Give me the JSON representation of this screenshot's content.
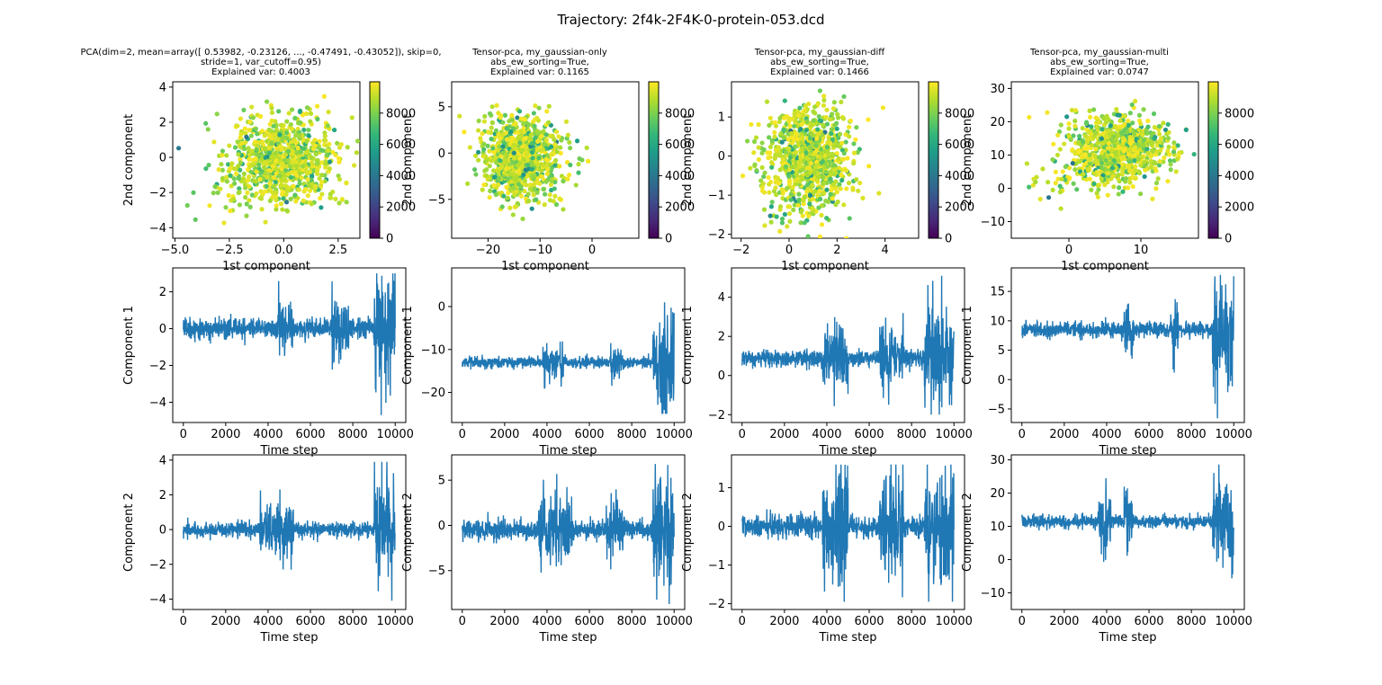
{
  "figure_title": "Trajectory: 2f4k-2F4K-0-protein-053.dcd",
  "colors": {
    "line": "#1f77b4",
    "viridis": [
      "#440154",
      "#482878",
      "#3e4989",
      "#31688e",
      "#26828e",
      "#1f9e89",
      "#35b779",
      "#6ece58",
      "#b5de2b",
      "#fde725"
    ]
  },
  "chart_data": [
    {
      "id": "scatter-1",
      "type": "scatter",
      "title_lines": [
        "PCA(dim=2, mean=array([ 0.53982, -0.23126, ..., -0.47491, -0.43052]), skip=0,",
        "stride=1, var_cutoff=0.95)",
        "Explained var: 0.4003"
      ],
      "xlabel": "1st component",
      "ylabel": "2nd component",
      "xlim": [
        -5.1,
        3.5
      ],
      "ylim": [
        -4.6,
        4.3
      ],
      "xticks": [
        -5.0,
        -2.5,
        0.0,
        2.5
      ],
      "xticklabels": [
        "−5.0",
        "−2.5",
        "0.0",
        "2.5"
      ],
      "yticks": [
        -4,
        -2,
        0,
        2,
        4
      ],
      "yticklabels": [
        "−4",
        "−2",
        "0",
        "2",
        "4"
      ],
      "point_cloud": {
        "center": [
          0.0,
          0.0
        ],
        "spread": [
          1.2,
          1.2
        ],
        "tail_direction": [
          -1.0,
          -0.9
        ]
      },
      "colorbar": {
        "label": "",
        "range": [
          0,
          10000
        ],
        "ticks": [
          0,
          2000,
          4000,
          6000,
          8000
        ],
        "ticklabels": [
          "0",
          "2000",
          "4000",
          "6000",
          "8000"
        ]
      }
    },
    {
      "id": "scatter-2",
      "type": "scatter",
      "title_lines": [
        "Tensor-pca, my_gaussian-only",
        "abs_ew_sorting=True,",
        "Explained var: 0.1165"
      ],
      "xlabel": "1st component",
      "ylabel": "2nd component",
      "xlim": [
        -27,
        9
      ],
      "ylim": [
        -9.2,
        7.7
      ],
      "xticks": [
        -20,
        -10,
        0
      ],
      "xticklabels": [
        "−20",
        "−10",
        "0"
      ],
      "yticks": [
        -5,
        0,
        5
      ],
      "yticklabels": [
        "−5",
        "0",
        "5"
      ],
      "point_cloud": {
        "center": [
          -14.0,
          -0.5
        ],
        "spread": [
          3.5,
          2.2
        ],
        "tail_direction": [
          1.0,
          -0.3
        ]
      },
      "colorbar": {
        "label": "",
        "range": [
          0,
          10000
        ],
        "ticks": [
          0,
          2000,
          4000,
          6000,
          8000
        ],
        "ticklabels": [
          "0",
          "2000",
          "4000",
          "6000",
          "8000"
        ]
      }
    },
    {
      "id": "scatter-3",
      "type": "scatter",
      "title_lines": [
        "Tensor-pca, my_gaussian-diff",
        "abs_ew_sorting=True,",
        "Explained var: 0.1466"
      ],
      "xlabel": "1st component",
      "ylabel": "2nd component",
      "xlim": [
        -2.4,
        5.4
      ],
      "ylim": [
        -2.1,
        1.9
      ],
      "xticks": [
        -2,
        0,
        2,
        4
      ],
      "xticklabels": [
        "−2",
        "0",
        "2",
        "4"
      ],
      "yticks": [
        -2,
        -1,
        0,
        1
      ],
      "yticklabels": [
        "−2",
        "−1",
        "0",
        "1"
      ],
      "point_cloud": {
        "center": [
          0.8,
          0.0
        ],
        "spread": [
          0.9,
          0.6
        ],
        "tail_direction": [
          -0.2,
          -1.0
        ]
      },
      "colorbar": {
        "label": "",
        "range": [
          0,
          10000
        ],
        "ticks": [
          0,
          2000,
          4000,
          6000,
          8000
        ],
        "ticklabels": [
          "0",
          "2000",
          "4000",
          "6000",
          "8000"
        ]
      }
    },
    {
      "id": "scatter-4",
      "type": "scatter",
      "title_lines": [
        "Tensor-pca, my_gaussian-multi",
        "abs_ew_sorting=True,",
        "Explained var: 0.0747"
      ],
      "xlabel": "1st component",
      "ylabel": "2nd component",
      "xlim": [
        -8,
        18
      ],
      "ylim": [
        -15,
        32
      ],
      "xticks": [
        0,
        10
      ],
      "xticklabels": [
        "0",
        "10"
      ],
      "yticks": [
        -10,
        0,
        10,
        20,
        30
      ],
      "yticklabels": [
        "−10",
        "0",
        "10",
        "20",
        "30"
      ],
      "point_cloud": {
        "center": [
          7.0,
          12.0
        ],
        "spread": [
          3.5,
          5.0
        ],
        "tail_direction": [
          -1.0,
          -1.0
        ]
      },
      "colorbar": {
        "label": "",
        "range": [
          0,
          10000
        ],
        "ticks": [
          0,
          2000,
          4000,
          6000,
          8000
        ],
        "ticklabels": [
          "0",
          "2000",
          "4000",
          "6000",
          "8000"
        ]
      }
    },
    {
      "id": "line-1-1",
      "type": "line",
      "xlabel": "Time step",
      "ylabel": "Component 1",
      "xlim": [
        -500,
        10500
      ],
      "ylim": [
        -5.1,
        3.3
      ],
      "xticks": [
        0,
        2000,
        4000,
        6000,
        8000,
        10000
      ],
      "xticklabels": [
        "0",
        "2000",
        "4000",
        "6000",
        "8000",
        "10000"
      ],
      "yticks": [
        -4,
        -2,
        0,
        2
      ],
      "yticklabels": [
        "−4",
        "−2",
        "0",
        "2"
      ],
      "series": {
        "baseline": 0.0,
        "noise": 0.5,
        "bursts": [
          [
            4500,
            5200,
            1.5
          ],
          [
            7000,
            7800,
            1.5
          ],
          [
            9000,
            10000,
            3.5
          ]
        ],
        "range": [
          -4.7,
          3.0
        ]
      }
    },
    {
      "id": "line-2-1",
      "type": "line",
      "xlabel": "Time step",
      "ylabel": "Component 1",
      "xlim": [
        -500,
        10500
      ],
      "ylim": [
        -27,
        9
      ],
      "xticks": [
        0,
        2000,
        4000,
        6000,
        8000,
        10000
      ],
      "xticklabels": [
        "0",
        "2000",
        "4000",
        "6000",
        "8000",
        "10000"
      ],
      "yticks": [
        -20,
        -10,
        0
      ],
      "yticklabels": [
        "−20",
        "−10",
        "0"
      ],
      "series": {
        "baseline": -13.0,
        "noise": 1.2,
        "bursts": [
          [
            3800,
            4800,
            3
          ],
          [
            7000,
            7500,
            4
          ],
          [
            9000,
            10000,
            12
          ]
        ],
        "range": [
          -25,
          7.5
        ]
      }
    },
    {
      "id": "line-3-1",
      "type": "line",
      "xlabel": "Time step",
      "ylabel": "Component 1",
      "xlim": [
        -500,
        10500
      ],
      "ylim": [
        -2.4,
        5.5
      ],
      "xticks": [
        0,
        2000,
        4000,
        6000,
        8000,
        10000
      ],
      "xticklabels": [
        "0",
        "2000",
        "4000",
        "6000",
        "8000",
        "10000"
      ],
      "yticks": [
        -2,
        0,
        2,
        4
      ],
      "yticklabels": [
        "−2",
        "0",
        "2",
        "4"
      ],
      "series": {
        "baseline": 0.9,
        "noise": 0.4,
        "bursts": [
          [
            3800,
            5000,
            1.5
          ],
          [
            6500,
            7600,
            1.5
          ],
          [
            8600,
            10000,
            3
          ]
        ],
        "range": [
          -2.0,
          5.1
        ]
      }
    },
    {
      "id": "line-4-1",
      "type": "line",
      "xlabel": "Time step",
      "ylabel": "Component 1",
      "xlim": [
        -500,
        10500
      ],
      "ylim": [
        -7.3,
        19
      ],
      "xticks": [
        0,
        2000,
        4000,
        6000,
        8000,
        10000
      ],
      "xticklabels": [
        "0",
        "2000",
        "4000",
        "6000",
        "8000",
        "10000"
      ],
      "yticks": [
        -5,
        0,
        5,
        10,
        15
      ],
      "yticklabels": [
        "−5",
        "0",
        "5",
        "10",
        "15"
      ],
      "series": {
        "baseline": 8.5,
        "noise": 1.2,
        "bursts": [
          [
            4800,
            5300,
            5
          ],
          [
            7000,
            7400,
            5
          ],
          [
            9000,
            10000,
            9
          ]
        ],
        "range": [
          -6.6,
          17.8
        ]
      }
    },
    {
      "id": "line-1-2",
      "type": "line",
      "xlabel": "Time step",
      "ylabel": "Component 2",
      "xlim": [
        -500,
        10500
      ],
      "ylim": [
        -4.6,
        4.3
      ],
      "xticks": [
        0,
        2000,
        4000,
        6000,
        8000,
        10000
      ],
      "xticklabels": [
        "0",
        "2000",
        "4000",
        "6000",
        "8000",
        "10000"
      ],
      "yticks": [
        -4,
        -2,
        0,
        2,
        4
      ],
      "yticklabels": [
        "−4",
        "−2",
        "0",
        "2",
        "4"
      ],
      "series": {
        "baseline": 0.0,
        "noise": 0.4,
        "bursts": [
          [
            3600,
            5200,
            1.5
          ],
          [
            9000,
            10000,
            3.5
          ]
        ],
        "range": [
          -4.2,
          3.9
        ]
      }
    },
    {
      "id": "line-2-2",
      "type": "line",
      "xlabel": "Time step",
      "ylabel": "Component 2",
      "xlim": [
        -500,
        10500
      ],
      "ylim": [
        -9.3,
        7.8
      ],
      "xticks": [
        0,
        2000,
        4000,
        6000,
        8000,
        10000
      ],
      "xticklabels": [
        "0",
        "2000",
        "4000",
        "6000",
        "8000",
        "10000"
      ],
      "yticks": [
        -5,
        0,
        5
      ],
      "yticklabels": [
        "−5",
        "0",
        "5"
      ],
      "series": {
        "baseline": -0.5,
        "noise": 1.0,
        "bursts": [
          [
            3600,
            5200,
            3.5
          ],
          [
            6800,
            7600,
            4
          ],
          [
            9000,
            10000,
            7
          ]
        ],
        "range": [
          -8.7,
          6.8
        ]
      }
    },
    {
      "id": "line-3-2",
      "type": "line",
      "xlabel": "Time step",
      "ylabel": "Component 2",
      "xlim": [
        -500,
        10500
      ],
      "ylim": [
        -2.15,
        1.85
      ],
      "xticks": [
        0,
        2000,
        4000,
        6000,
        8000,
        10000
      ],
      "xticklabels": [
        "0",
        "2000",
        "4000",
        "6000",
        "8000",
        "10000"
      ],
      "yticks": [
        -2,
        -1,
        0,
        1
      ],
      "yticklabels": [
        "−2",
        "−1",
        "0",
        "1"
      ],
      "series": {
        "baseline": 0.0,
        "noise": 0.25,
        "bursts": [
          [
            3800,
            5000,
            1.5
          ],
          [
            6500,
            7600,
            1.5
          ],
          [
            8600,
            10000,
            1.8
          ]
        ],
        "range": [
          -1.95,
          1.6
        ]
      }
    },
    {
      "id": "line-4-2",
      "type": "line",
      "xlabel": "Time step",
      "ylabel": "Component 2",
      "xlim": [
        -500,
        10500
      ],
      "ylim": [
        -15,
        31.5
      ],
      "xticks": [
        0,
        2000,
        4000,
        6000,
        8000,
        10000
      ],
      "xticklabels": [
        "0",
        "2000",
        "4000",
        "6000",
        "8000",
        "10000"
      ],
      "yticks": [
        -10,
        0,
        10,
        20,
        30
      ],
      "yticklabels": [
        "−10",
        "0",
        "10",
        "20",
        "30"
      ],
      "series": {
        "baseline": 11.5,
        "noise": 1.8,
        "bursts": [
          [
            3600,
            4200,
            8
          ],
          [
            4800,
            5200,
            9
          ],
          [
            9000,
            10000,
            16
          ]
        ],
        "range": [
          -13,
          29.5
        ]
      }
    }
  ]
}
